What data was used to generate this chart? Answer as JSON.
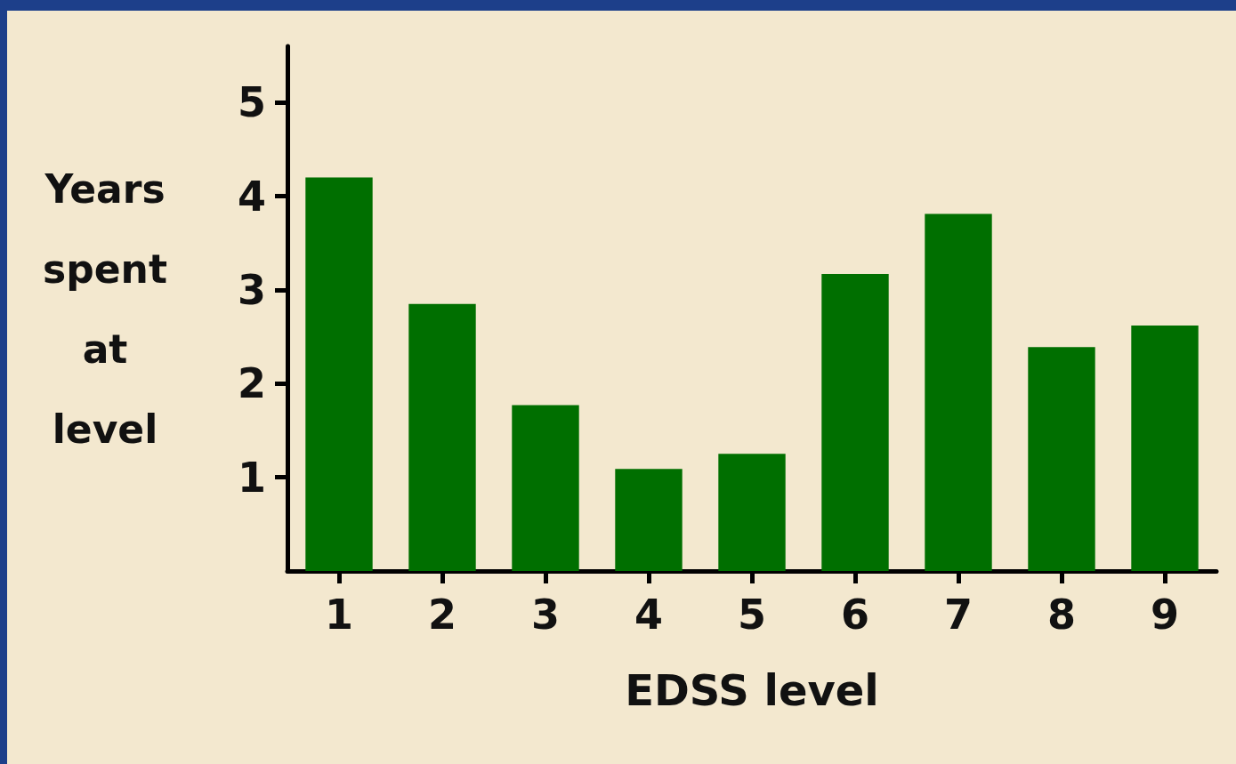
{
  "chart_data": {
    "type": "bar",
    "xlabel": "EDSS level",
    "ylabel": "Years spent at level",
    "categories": [
      "1",
      "2",
      "3",
      "4",
      "5",
      "6",
      "7",
      "8",
      "9"
    ],
    "values": [
      4.2,
      2.85,
      1.77,
      1.09,
      1.25,
      3.17,
      3.81,
      2.39,
      2.62
    ],
    "color": "#006f00",
    "ylim": [
      0,
      5.6
    ],
    "yticks": [
      1,
      2,
      3,
      4,
      5
    ],
    "grid": false
  }
}
